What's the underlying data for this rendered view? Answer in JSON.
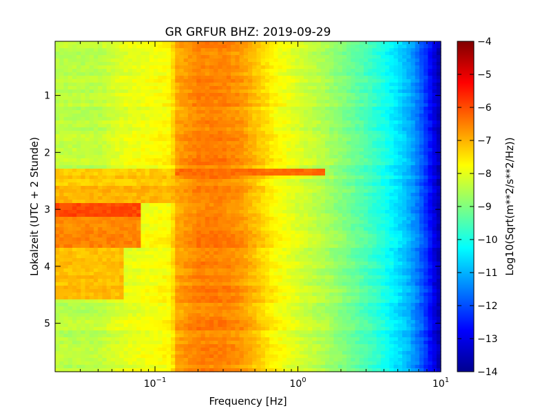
{
  "chart_data": {
    "type": "heatmap",
    "title": "GR GRFUR BHZ: 2019-09-29",
    "xlabel": "Frequency [Hz]",
    "ylabel": "Lokalzeit (UTC + 2 Stunde)",
    "x_scale": "log",
    "xlim": [
      0.02,
      10
    ],
    "x_ticks": [
      {
        "value": 0.1,
        "base": "10",
        "exp": "−1"
      },
      {
        "value": 1,
        "base": "10",
        "exp": "0"
      },
      {
        "value": 10,
        "base": "10",
        "exp": "1"
      }
    ],
    "ylim": [
      0.05,
      5.85
    ],
    "y_inverted": true,
    "y_ticks": [
      {
        "value": 1,
        "label": "1"
      },
      {
        "value": 2,
        "label": "2"
      },
      {
        "value": 3,
        "label": "3"
      },
      {
        "value": 4,
        "label": "4"
      },
      {
        "value": 5,
        "label": "5"
      }
    ],
    "colorbar": {
      "label": "Log10(Sqrt(m**2/s**2/Hz))",
      "range": [
        -14,
        -4
      ],
      "colormap": "jet",
      "ticks": [
        {
          "value": -4,
          "label": "−4"
        },
        {
          "value": -5,
          "label": "−5"
        },
        {
          "value": -6,
          "label": "−6"
        },
        {
          "value": -7,
          "label": "−7"
        },
        {
          "value": -8,
          "label": "−8"
        },
        {
          "value": -9,
          "label": "−9"
        },
        {
          "value": -10,
          "label": "−10"
        },
        {
          "value": -11,
          "label": "−11"
        },
        {
          "value": -12,
          "label": "−12"
        },
        {
          "value": -13,
          "label": "−13"
        },
        {
          "value": -14,
          "label": "−14"
        }
      ]
    },
    "spectrum_profile": {
      "frequency_hz": [
        0.02,
        0.04,
        0.06,
        0.08,
        0.1,
        0.13,
        0.14,
        0.2,
        0.3,
        0.4,
        0.5,
        0.7,
        1.0,
        1.5,
        2.0,
        3.0,
        4.0,
        5.0,
        6.0,
        7.0,
        8.0,
        9.0,
        10.0
      ],
      "quiet_level": [
        -8.4,
        -8.4,
        -8.0,
        -7.9,
        -7.8,
        -7.7,
        -6.9,
        -6.5,
        -6.5,
        -6.7,
        -7.1,
        -7.7,
        -8.1,
        -8.5,
        -8.9,
        -9.5,
        -10.0,
        -10.5,
        -11.0,
        -11.6,
        -12.3,
        -13.0,
        -13.6
      ]
    },
    "disturbance_level": [
      {
        "time_start": 2.3,
        "time_end": 2.6,
        "frequency_max_hz": 0.14,
        "level": -7.2
      },
      {
        "time_start": 2.6,
        "time_end": 2.9,
        "frequency_max_hz": 0.14,
        "level": -7.0
      },
      {
        "time_start": 2.9,
        "time_end": 3.15,
        "frequency_max_hz": 0.08,
        "level": -5.9
      },
      {
        "time_start": 3.15,
        "time_end": 3.7,
        "frequency_max_hz": 0.08,
        "level": -6.6
      },
      {
        "time_start": 3.7,
        "time_end": 4.6,
        "frequency_max_hz": 0.06,
        "level": -7.1
      }
    ],
    "annotation_band": {
      "time": 2.35,
      "frequency_min_hz": 0.14,
      "frequency_max_hz": 1.5,
      "level": -6.3
    },
    "grid": false,
    "legend": "none"
  }
}
